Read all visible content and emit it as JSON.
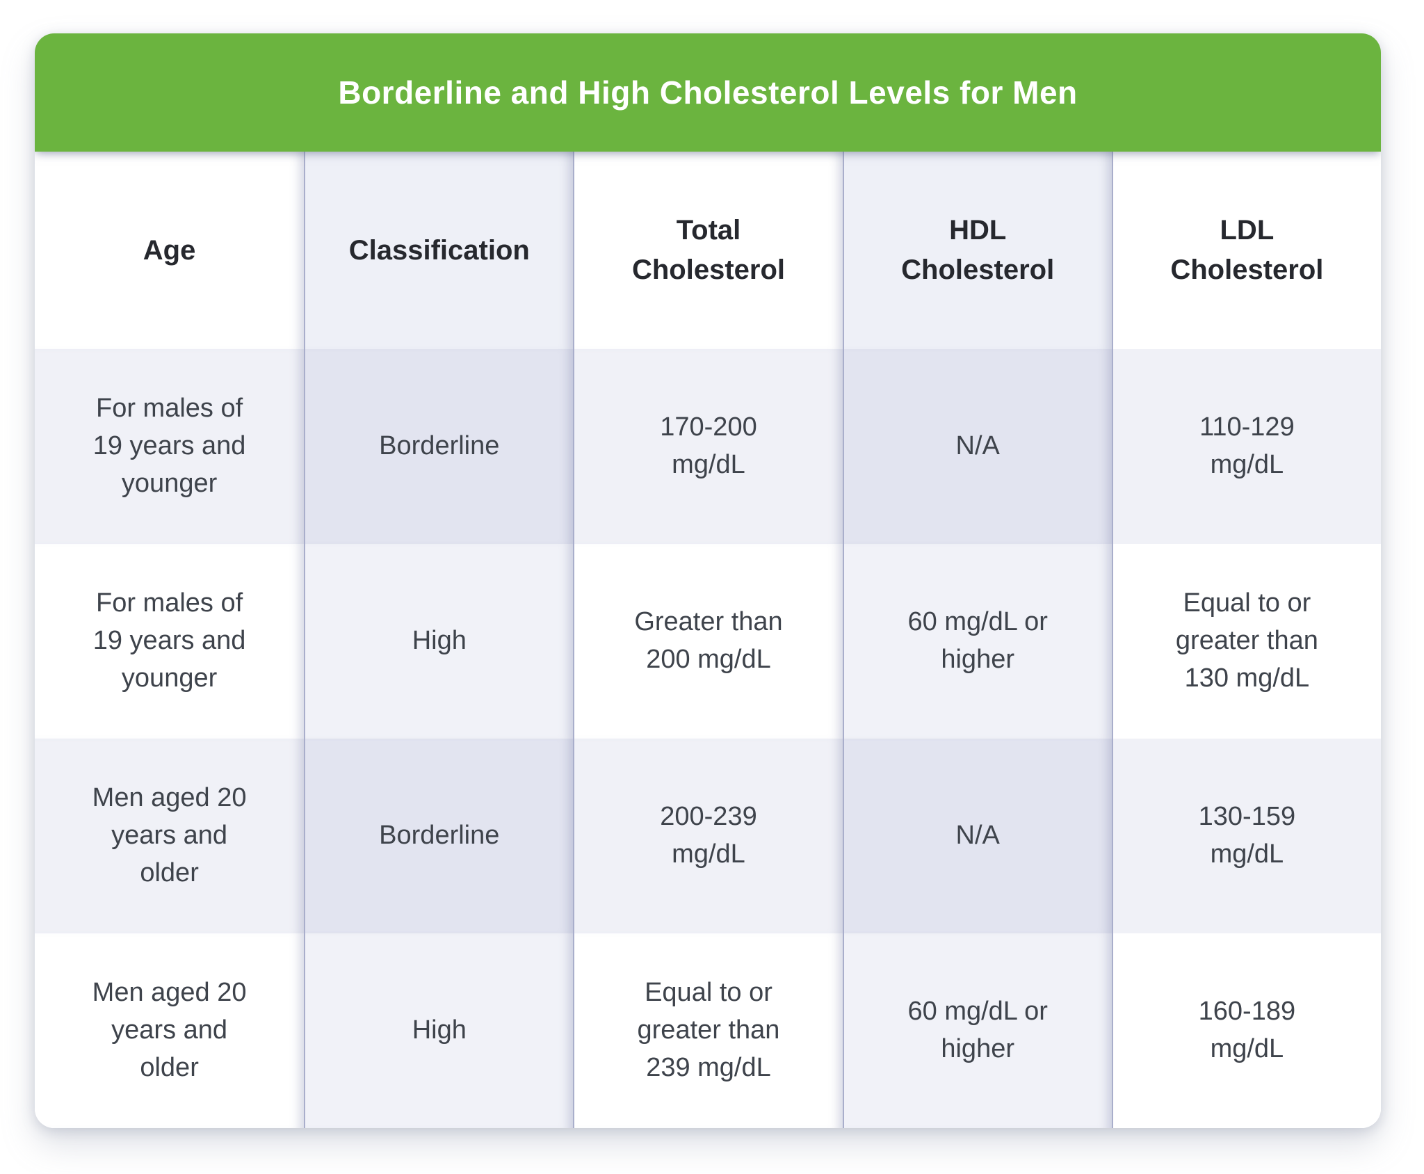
{
  "chart_data": {
    "type": "table",
    "title": "Borderline and High Cholesterol Levels for Men",
    "columns": [
      "Age",
      "Classification",
      "Total Cholesterol",
      "HDL Cholesterol",
      "LDL Cholesterol"
    ],
    "rows": [
      [
        "For males of 19 years and younger",
        "Borderline",
        "170-200 mg/dL",
        "N/A",
        "110-129 mg/dL"
      ],
      [
        "For males of 19 years and younger",
        "High",
        "Greater than 200 mg/dL",
        "60 mg/dL or higher",
        "Equal to or greater than 130 mg/dL"
      ],
      [
        "Men aged 20 years and older",
        "Borderline",
        "200-239 mg/dL",
        "N/A",
        "130-159 mg/dL"
      ],
      [
        "Men aged 20 years and older",
        "High",
        "Equal to or greater than 239 mg/dL",
        "60 mg/dL or higher",
        "160-189 mg/dL"
      ]
    ],
    "layout": {
      "legend": "none",
      "grid": "column separators only",
      "striped_column_indexes": [
        1,
        3
      ],
      "shaded_row_indexes": [
        0,
        2
      ]
    }
  },
  "colors": {
    "title_bar_green": "#6bb43f",
    "title_text": "#ffffff",
    "stripe_column_header": "#eef0f7",
    "stripe_column_shaded_row": "#e2e4f0",
    "stripe_column_plain_row": "#f1f2f8",
    "plain_column_shaded_row": "#f0f1f7",
    "separator_line": "#a9aecb",
    "header_text": "#26282e",
    "cell_text": "#3e434b"
  }
}
